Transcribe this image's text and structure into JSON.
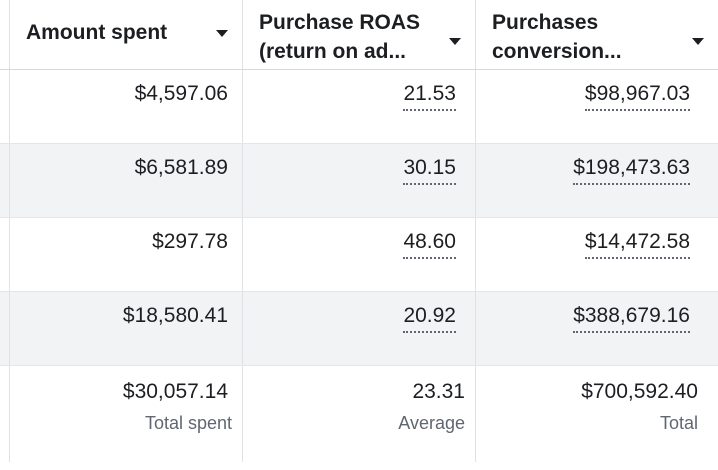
{
  "columns": [
    {
      "label": "Amount spent"
    },
    {
      "label": "Purchase ROAS\n(return on ad..."
    },
    {
      "label": "Purchases\nconversion..."
    }
  ],
  "rows": [
    {
      "amount": "$4,597.06",
      "roas": "21.53",
      "conversion": "$98,967.03"
    },
    {
      "amount": "$6,581.89",
      "roas": "30.15",
      "conversion": "$198,473.63"
    },
    {
      "amount": "$297.78",
      "roas": "48.60",
      "conversion": "$14,472.58"
    },
    {
      "amount": "$18,580.41",
      "roas": "20.92",
      "conversion": "$388,679.16"
    }
  ],
  "totals": {
    "amount": {
      "value": "$30,057.14",
      "caption": "Total spent"
    },
    "roas": {
      "value": "23.31",
      "caption": "Average"
    },
    "conversion": {
      "value": "$700,592.40",
      "caption": "Total"
    }
  },
  "icons": {
    "sort": "caret-down-icon"
  },
  "colors": {
    "stripe": "#f2f3f5",
    "text": "#1c1e21",
    "muted": "#606770"
  }
}
